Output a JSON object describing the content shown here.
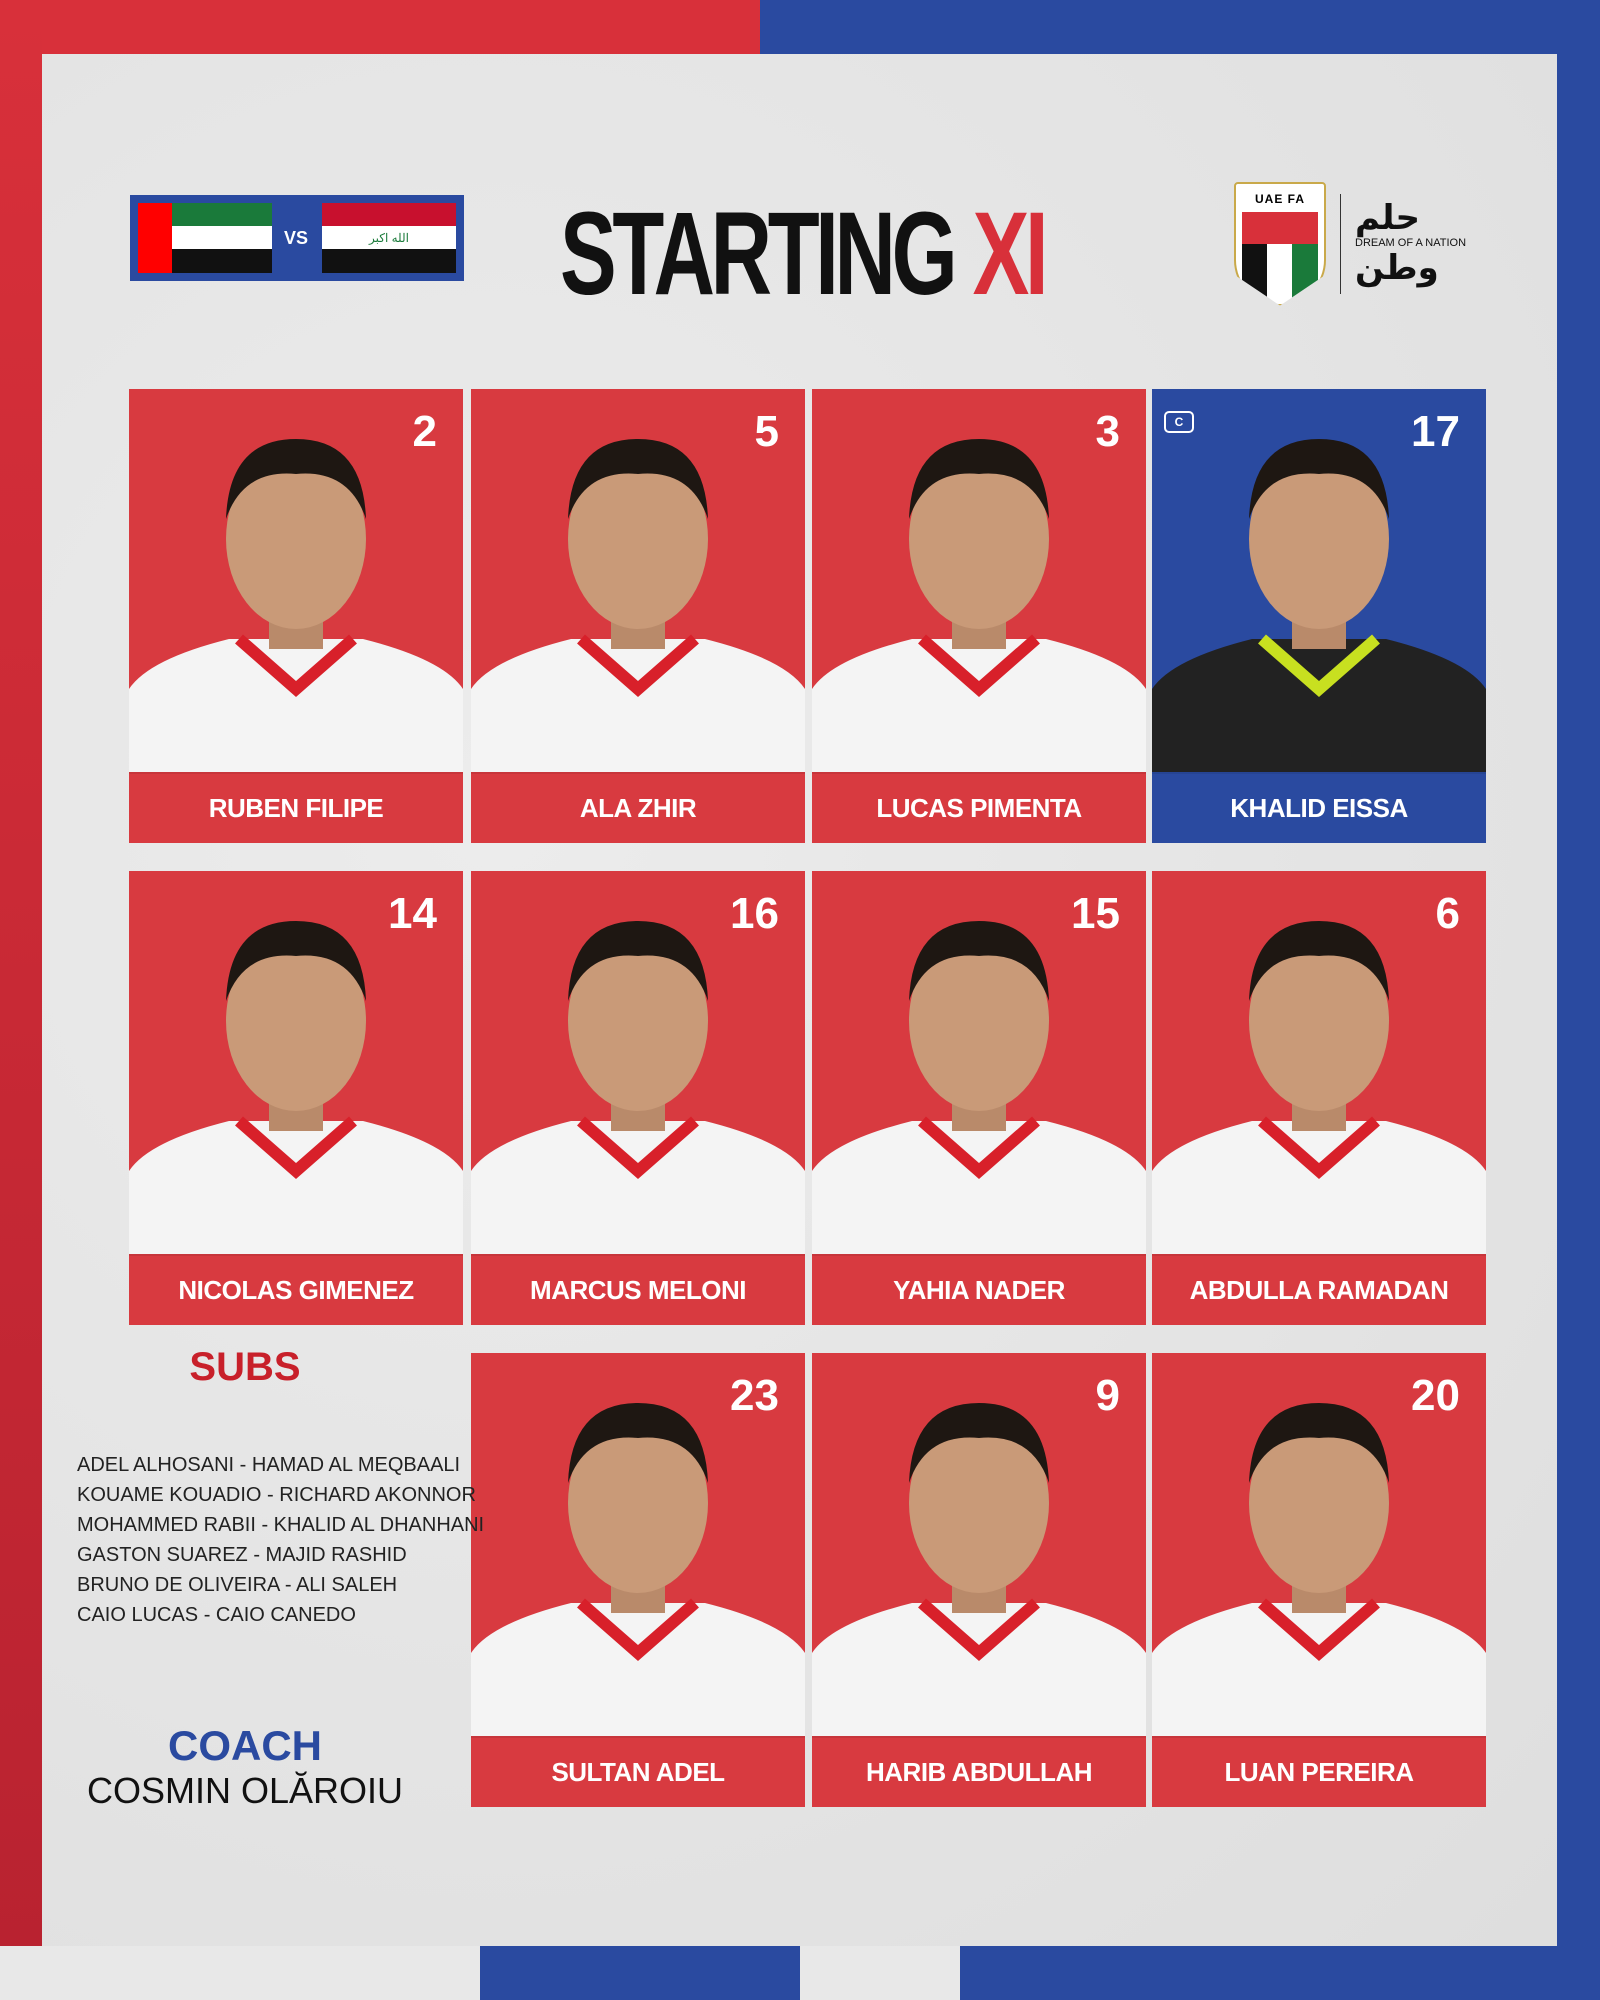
{
  "header": {
    "vs": "VS",
    "title_main": "STARTING",
    "title_accent": "XI",
    "iraq_flag_text": "الله اكبر",
    "logo": {
      "badge_text": "UAE FA",
      "slogan_ar_top": "حلم",
      "slogan_en": "DREAM OF A NATION",
      "slogan_ar_bottom": "وطن"
    }
  },
  "colors": {
    "red": "#d83a40",
    "blue": "#2a4aa0"
  },
  "players": [
    {
      "number": "2",
      "name": "RUBEN FILIPE"
    },
    {
      "number": "5",
      "name": "ALA ZHIR"
    },
    {
      "number": "3",
      "name": "LUCAS PIMENTA"
    },
    {
      "number": "17",
      "name": "KHALID EISSA",
      "goalkeeper": true,
      "captain": true,
      "captain_label": "C"
    },
    {
      "number": "14",
      "name": "NICOLAS GIMENEZ"
    },
    {
      "number": "16",
      "name": "MARCUS MELONI"
    },
    {
      "number": "15",
      "name": "YAHIA NADER"
    },
    {
      "number": "6",
      "name": "ABDULLA RAMADAN"
    },
    {
      "number": "23",
      "name": "SULTAN ADEL"
    },
    {
      "number": "9",
      "name": "HARIB ABDULLAH"
    },
    {
      "number": "20",
      "name": "LUAN PEREIRA"
    }
  ],
  "subs": {
    "title": "SUBS",
    "lines": [
      "ADEL ALHOSANI - HAMAD AL MEQBAALI",
      "KOUAME KOUADIO - RICHARD AKONNOR",
      "MOHAMMED RABII - KHALID AL DHANHANI",
      "GASTON SUAREZ - MAJID RASHID",
      "BRUNO DE OLIVEIRA - ALI SALEH",
      "CAIO LUCAS - CAIO CANEDO"
    ]
  },
  "coach": {
    "title": "COACH",
    "name": "COSMIN OLĂROIU"
  }
}
